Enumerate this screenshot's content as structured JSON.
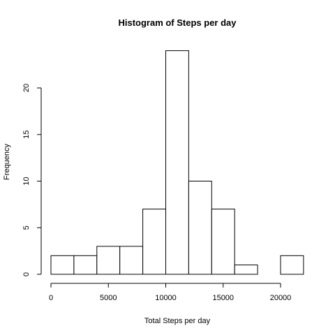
{
  "chart_data": {
    "type": "bar",
    "title": "Histogram of Steps per day",
    "xlabel": "Total Steps per day",
    "ylabel": "Frequency",
    "bins": [
      {
        "start": 0,
        "end": 2000,
        "count": 2
      },
      {
        "start": 2000,
        "end": 4000,
        "count": 2
      },
      {
        "start": 4000,
        "end": 6000,
        "count": 3
      },
      {
        "start": 6000,
        "end": 8000,
        "count": 3
      },
      {
        "start": 8000,
        "end": 10000,
        "count": 7
      },
      {
        "start": 10000,
        "end": 12000,
        "count": 24
      },
      {
        "start": 12000,
        "end": 14000,
        "count": 10
      },
      {
        "start": 14000,
        "end": 16000,
        "count": 7
      },
      {
        "start": 16000,
        "end": 18000,
        "count": 1
      },
      {
        "start": 18000,
        "end": 20000,
        "count": 0
      },
      {
        "start": 20000,
        "end": 22000,
        "count": 2
      }
    ],
    "xticks": [
      "0",
      "5000",
      "10000",
      "15000",
      "20000"
    ],
    "yticks": [
      "0",
      "5",
      "10",
      "15",
      "20"
    ],
    "xlim": [
      0,
      22000
    ],
    "ylim": [
      0,
      24
    ],
    "grid": false,
    "bar_fill": "#ffffff",
    "bar_stroke": "#000000"
  }
}
